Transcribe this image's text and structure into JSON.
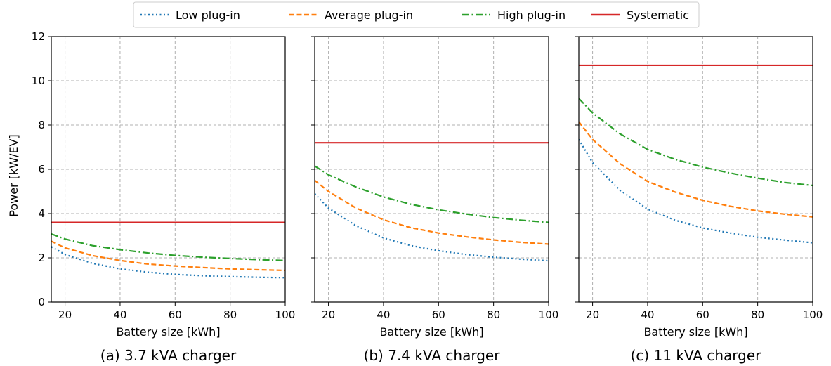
{
  "legend": {
    "placement": "top-center",
    "items": [
      {
        "label": "Low plug-in",
        "color": "#1f77b4",
        "dash": "dotted"
      },
      {
        "label": "Average plug-in",
        "color": "#ff7f0e",
        "dash": "dashed"
      },
      {
        "label": "High plug-in",
        "color": "#2ca02c",
        "dash": "dashdot"
      },
      {
        "label": "Systematic",
        "color": "#d62728",
        "dash": "solid"
      }
    ]
  },
  "shared_ylabel": "Power [kW/EV]",
  "chart_data": [
    {
      "type": "line",
      "caption": "(a) 3.7 kVA charger",
      "xlabel": "Battery size [kWh]",
      "ylabel": "Power [kW/EV]",
      "xlim": [
        15,
        100
      ],
      "ylim": [
        0,
        12
      ],
      "xticks": [
        20,
        40,
        60,
        80,
        100
      ],
      "yticks": [
        0,
        2,
        4,
        6,
        8,
        10,
        12
      ],
      "grid": true,
      "x": [
        15,
        20,
        30,
        40,
        50,
        60,
        70,
        80,
        90,
        100
      ],
      "series": [
        {
          "name": "Low plug-in",
          "values": [
            2.5,
            2.15,
            1.75,
            1.5,
            1.35,
            1.25,
            1.19,
            1.15,
            1.12,
            1.1
          ]
        },
        {
          "name": "Average plug-in",
          "values": [
            2.75,
            2.45,
            2.1,
            1.88,
            1.72,
            1.63,
            1.56,
            1.5,
            1.46,
            1.43
          ]
        },
        {
          "name": "High plug-in",
          "values": [
            3.08,
            2.85,
            2.55,
            2.37,
            2.22,
            2.11,
            2.03,
            1.97,
            1.92,
            1.88
          ]
        },
        {
          "name": "Systematic",
          "values": [
            3.6,
            3.6,
            3.6,
            3.6,
            3.6,
            3.6,
            3.6,
            3.6,
            3.6,
            3.6
          ]
        }
      ]
    },
    {
      "type": "line",
      "caption": "(b) 7.4 kVA charger",
      "xlabel": "Battery size [kWh]",
      "ylabel": "",
      "xlim": [
        15,
        100
      ],
      "ylim": [
        0,
        12
      ],
      "xticks": [
        20,
        40,
        60,
        80,
        100
      ],
      "yticks": [
        0,
        2,
        4,
        6,
        8,
        10,
        12
      ],
      "grid": true,
      "x": [
        15,
        20,
        30,
        40,
        50,
        60,
        70,
        80,
        90,
        100
      ],
      "series": [
        {
          "name": "Low plug-in",
          "values": [
            4.9,
            4.25,
            3.45,
            2.9,
            2.55,
            2.32,
            2.15,
            2.03,
            1.94,
            1.87
          ]
        },
        {
          "name": "Average plug-in",
          "values": [
            5.5,
            5.0,
            4.25,
            3.72,
            3.36,
            3.12,
            2.95,
            2.81,
            2.7,
            2.62
          ]
        },
        {
          "name": "High plug-in",
          "values": [
            6.15,
            5.75,
            5.2,
            4.75,
            4.42,
            4.17,
            3.98,
            3.82,
            3.7,
            3.6
          ]
        },
        {
          "name": "Systematic",
          "values": [
            7.2,
            7.2,
            7.2,
            7.2,
            7.2,
            7.2,
            7.2,
            7.2,
            7.2,
            7.2
          ]
        }
      ]
    },
    {
      "type": "line",
      "caption": "(c) 11 kVA charger",
      "xlabel": "Battery size [kWh]",
      "ylabel": "",
      "xlim": [
        15,
        100
      ],
      "ylim": [
        0,
        12
      ],
      "xticks": [
        20,
        40,
        60,
        80,
        100
      ],
      "yticks": [
        0,
        2,
        4,
        6,
        8,
        10,
        12
      ],
      "grid": true,
      "x": [
        15,
        20,
        30,
        40,
        50,
        60,
        70,
        80,
        90,
        100
      ],
      "series": [
        {
          "name": "Low plug-in",
          "values": [
            7.35,
            6.3,
            5.05,
            4.2,
            3.7,
            3.35,
            3.12,
            2.93,
            2.8,
            2.68
          ]
        },
        {
          "name": "Average plug-in",
          "values": [
            8.15,
            7.35,
            6.25,
            5.45,
            4.97,
            4.6,
            4.33,
            4.12,
            3.97,
            3.85
          ]
        },
        {
          "name": "High plug-in",
          "values": [
            9.2,
            8.55,
            7.6,
            6.9,
            6.45,
            6.1,
            5.83,
            5.6,
            5.4,
            5.27
          ]
        },
        {
          "name": "Systematic",
          "values": [
            10.7,
            10.7,
            10.7,
            10.7,
            10.7,
            10.7,
            10.7,
            10.7,
            10.7,
            10.7
          ]
        }
      ]
    }
  ]
}
